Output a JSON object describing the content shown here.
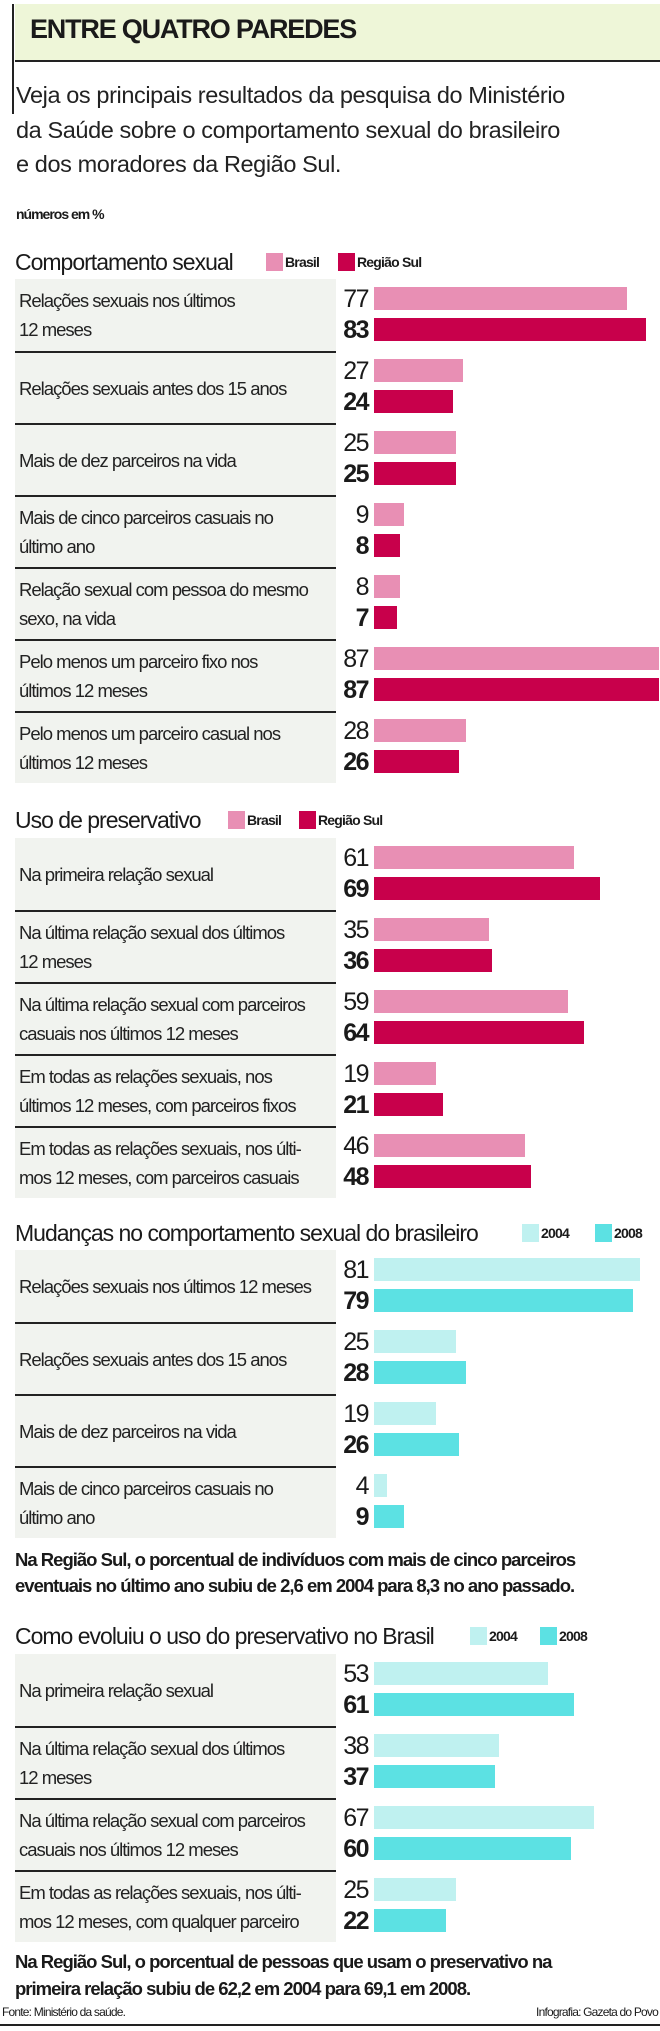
{
  "title": "ENTRE QUATRO PAREDES",
  "intro": [
    "Veja os principais resultados da pesquisa do Ministério",
    "da Saúde sobre o comportamento sexual do brasileiro",
    "e dos moradores da Região Sul."
  ],
  "unit_note": "números em %",
  "colors": {
    "brasil": "#e88fb4",
    "regiao_sul": "#c8004b",
    "y2004": "#bff1f0",
    "y2008": "#5ce1e3",
    "row_bg": "#f1f3ef",
    "title_bg": "#eef6d8"
  },
  "chart_data": [
    {
      "type": "bar",
      "title": "Comportamento sexual",
      "series": [
        {
          "name": "Brasil",
          "color": "#e88fb4"
        },
        {
          "name": "Região Sul",
          "color": "#c8004b"
        }
      ],
      "categories": [
        "Relações sexuais nos últimos\n12 meses",
        "Relações sexuais antes dos 15 anos",
        "Mais de dez parceiros na vida",
        "Mais de cinco parceiros casuais no\núltimo ano",
        "Relação sexual com pessoa do mesmo\nsexo, na vida",
        "Pelo menos um parceiro fixo nos\núltimos 12 meses",
        "Pelo menos um parceiro casual nos\núltimos 12 meses"
      ],
      "values": [
        [
          77,
          83
        ],
        [
          27,
          24
        ],
        [
          25,
          25
        ],
        [
          9,
          8
        ],
        [
          8,
          7
        ],
        [
          87,
          87
        ],
        [
          28,
          26
        ]
      ]
    },
    {
      "type": "bar",
      "title": "Uso de preservativo",
      "series": [
        {
          "name": "Brasil",
          "color": "#e88fb4"
        },
        {
          "name": "Região Sul",
          "color": "#c8004b"
        }
      ],
      "categories": [
        "Na primeira relação sexual",
        "Na última relação sexual dos últimos\n12 meses",
        "Na última relação sexual com parceiros\ncasuais nos últimos 12 meses",
        "Em todas as relações sexuais, nos\núltimos 12 meses, com parceiros fixos",
        "Em todas as relações sexuais, nos últi-\nmos 12 meses, com parceiros casuais"
      ],
      "values": [
        [
          61,
          69
        ],
        [
          35,
          36
        ],
        [
          59,
          64
        ],
        [
          19,
          21
        ],
        [
          46,
          48
        ]
      ]
    },
    {
      "type": "bar",
      "title": "Mudanças no comportamento sexual do brasileiro",
      "series": [
        {
          "name": "2004",
          "color": "#bff1f0"
        },
        {
          "name": "2008",
          "color": "#5ce1e3"
        }
      ],
      "categories": [
        "Relações sexuais nos últimos 12 meses",
        "Relações sexuais antes dos 15 anos",
        "Mais de dez parceiros na vida",
        "Mais de cinco parceiros casuais no\núltimo ano"
      ],
      "values": [
        [
          81,
          79
        ],
        [
          25,
          28
        ],
        [
          19,
          26
        ],
        [
          4,
          9
        ]
      ],
      "note": [
        "Na Região Sul, o porcentual de indivíduos com mais de cinco parceiros",
        "eventuais no último ano subiu de 2,6 em 2004 para 8,3 no ano passado."
      ]
    },
    {
      "type": "bar",
      "title": "Como evoluiu o uso do preservativo no Brasil",
      "series": [
        {
          "name": "2004",
          "color": "#bff1f0"
        },
        {
          "name": "2008",
          "color": "#5ce1e3"
        }
      ],
      "categories": [
        "Na primeira relação sexual",
        "Na última relação sexual dos últimos\n12 meses",
        "Na última relação sexual com parceiros\ncasuais nos últimos 12 meses",
        "Em todas as relações sexuais, nos últi-\nmos 12 meses, com qualquer parceiro"
      ],
      "values": [
        [
          53,
          61
        ],
        [
          38,
          37
        ],
        [
          67,
          60
        ],
        [
          25,
          22
        ]
      ],
      "note": [
        "Na Região Sul, o porcentual de pessoas que usam o preservativo na",
        "primeira relação subiu de 62,2 em 2004 para 69,1 em 2008."
      ]
    }
  ],
  "footer": {
    "source": "Fonte: Ministério da saúde.",
    "credit": "Infografia: Gazeta do Povo"
  }
}
